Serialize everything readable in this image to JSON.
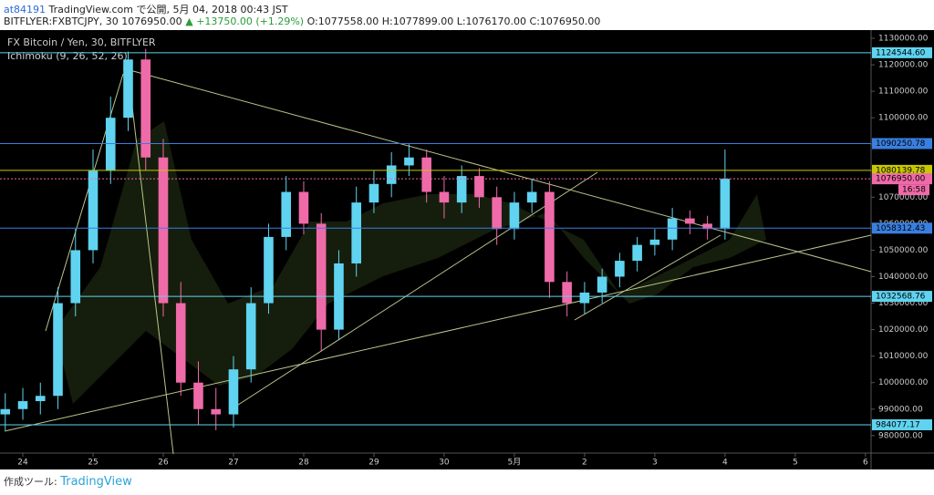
{
  "header": {
    "user": "at84191",
    "published": "TradingView.com で公開, 5月 04, 2018 00:43 JST",
    "symbol": "BITFLYER:FXBTCJPY, 30 1076950.00",
    "change": "▲ +13750.00 (+1.29%)",
    "open": "O:1077558.00",
    "high": "H:1077899.00",
    "low": "L:1076170.00",
    "close": "C:1076950.00"
  },
  "footer": {
    "label": "作成ツール:",
    "brand": "TradingView"
  },
  "chart_data": {
    "type": "candlestick",
    "title": "FX Bitcoin / Yen, 30, BITFLYER",
    "indicator": "Ichimoku (9, 26, 52, 26)",
    "countdown": "16:58",
    "up_color": "#5fd3ef",
    "down_color": "#ef6aa8",
    "x": [
      -0.25,
      0,
      0.25,
      0.5,
      0.75,
      1,
      1.25,
      1.5,
      1.75,
      2,
      2.25,
      2.5,
      2.75,
      3,
      3.25,
      3.5,
      3.75,
      4,
      4.25,
      4.5,
      4.75,
      5,
      5.25,
      5.5,
      5.75,
      6,
      6.25,
      6.5,
      6.75,
      7,
      7.25,
      7.5,
      7.75,
      8,
      8.25,
      8.5,
      8.75,
      9,
      9.25,
      9.5,
      9.75,
      10
    ],
    "open": [
      988000,
      990000,
      993000,
      995000,
      1030000,
      1050000,
      1080000,
      1100000,
      1122000,
      1085000,
      1030000,
      1000000,
      990000,
      988000,
      1005000,
      1030000,
      1055000,
      1072000,
      1060000,
      1020000,
      1045000,
      1068000,
      1075000,
      1082000,
      1085000,
      1072000,
      1068000,
      1078000,
      1070000,
      1058000,
      1068000,
      1072000,
      1038000,
      1030000,
      1034000,
      1040000,
      1046000,
      1052000,
      1054000,
      1062000,
      1060000,
      1058000
    ],
    "high": [
      996000,
      998000,
      1000000,
      1036000,
      1058000,
      1088000,
      1108000,
      1125000,
      1126000,
      1092000,
      1038000,
      1008000,
      998000,
      1010000,
      1036000,
      1060000,
      1078000,
      1076000,
      1064000,
      1050000,
      1074000,
      1080000,
      1087000,
      1090000,
      1088000,
      1078000,
      1082000,
      1081000,
      1074000,
      1072000,
      1077000,
      1076000,
      1042000,
      1038000,
      1043000,
      1049000,
      1055000,
      1058000,
      1066000,
      1065000,
      1063000,
      1088000
    ],
    "low": [
      982000,
      986000,
      988000,
      990000,
      1025000,
      1045000,
      1075000,
      1095000,
      1080000,
      1025000,
      995000,
      984000,
      982000,
      983000,
      1000000,
      1026000,
      1050000,
      1056000,
      1012000,
      1016000,
      1040000,
      1064000,
      1070000,
      1078000,
      1068000,
      1062000,
      1064000,
      1066000,
      1052000,
      1054000,
      1064000,
      1032000,
      1025000,
      1026000,
      1030000,
      1036000,
      1042000,
      1048000,
      1050000,
      1056000,
      1054000,
      1054000
    ],
    "close": [
      990000,
      993000,
      995000,
      1030000,
      1050000,
      1080000,
      1100000,
      1122000,
      1085000,
      1030000,
      1000000,
      990000,
      988000,
      1005000,
      1030000,
      1055000,
      1072000,
      1060000,
      1020000,
      1045000,
      1068000,
      1075000,
      1082000,
      1085000,
      1072000,
      1068000,
      1078000,
      1070000,
      1058000,
      1068000,
      1072000,
      1038000,
      1030000,
      1034000,
      1040000,
      1046000,
      1052000,
      1054000,
      1062000,
      1060000,
      1058000,
      1076950
    ],
    "xlim": [
      -0.325,
      12.08
    ],
    "xticks": [
      {
        "value": 0,
        "label": "24"
      },
      {
        "value": 1,
        "label": "25"
      },
      {
        "value": 2,
        "label": "26"
      },
      {
        "value": 3,
        "label": "27"
      },
      {
        "value": 4,
        "label": "28"
      },
      {
        "value": 5,
        "label": "29"
      },
      {
        "value": 6,
        "label": "30"
      },
      {
        "value": 7,
        "label": "5月"
      },
      {
        "value": 8,
        "label": "2"
      },
      {
        "value": 9,
        "label": "3"
      },
      {
        "value": 10,
        "label": "4"
      },
      {
        "value": 11,
        "label": "5"
      },
      {
        "value": 12,
        "label": "6"
      }
    ],
    "ylim": [
      973400,
      1133100
    ],
    "yticks": [
      {
        "value": 980000,
        "label": "980000.00"
      },
      {
        "value": 990000,
        "label": "990000.00"
      },
      {
        "value": 1000000,
        "label": "1000000.00"
      },
      {
        "value": 1010000,
        "label": "1010000.00"
      },
      {
        "value": 1020000,
        "label": "1020000.00"
      },
      {
        "value": 1030000,
        "label": "1030000.00"
      },
      {
        "value": 1040000,
        "label": "1040000.00"
      },
      {
        "value": 1050000,
        "label": "1050000.00"
      },
      {
        "value": 1060000,
        "label": "1060000.00"
      },
      {
        "value": 1070000,
        "label": "1070000.00"
      },
      {
        "value": 1080000,
        "label": "1080000.00"
      },
      {
        "value": 1090000,
        "label": "1090000.00"
      },
      {
        "value": 1100000,
        "label": "1100000.00"
      },
      {
        "value": 1110000,
        "label": "1110000.00"
      },
      {
        "value": 1120000,
        "label": "1120000.00"
      },
      {
        "value": 1130000,
        "label": "1130000.00"
      }
    ],
    "levels": [
      {
        "value": 1124544.6,
        "label": "1124544.60",
        "color": "#5fd3ef"
      },
      {
        "value": 1090250.78,
        "label": "1090250.78",
        "color": "#3a7fe0"
      },
      {
        "value": 1080139.78,
        "label": "1080139.78",
        "color": "#c8c800"
      },
      {
        "value": 1076950,
        "label": "1076950.00",
        "color": "#ef6aa8"
      },
      {
        "value": 1058312.43,
        "label": "1058312.43",
        "color": "#3a7fe0"
      },
      {
        "value": 1032568.76,
        "label": "1032568.76",
        "color": "#5fd3ef"
      },
      {
        "value": 984077.17,
        "label": "984077.17",
        "color": "#5fd3ef"
      }
    ]
  }
}
